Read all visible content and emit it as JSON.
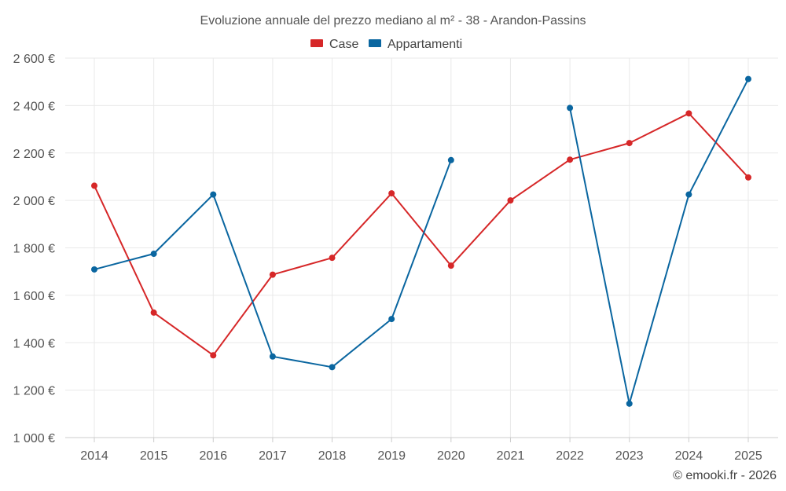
{
  "chart_data": {
    "type": "line",
    "title": "Evoluzione annuale del prezzo mediano al m² - 38 - Arandon-Passins",
    "categories": [
      "2014",
      "2015",
      "2016",
      "2017",
      "2018",
      "2019",
      "2020",
      "2021",
      "2022",
      "2023",
      "2024",
      "2025"
    ],
    "ylim": [
      1000,
      2600
    ],
    "yticks": [
      1000,
      1200,
      1400,
      1600,
      1800,
      2000,
      2200,
      2400,
      2600
    ],
    "ytick_labels": [
      "1 000 €",
      "1 200 €",
      "1 400 €",
      "1 600 €",
      "1 800 €",
      "2 000 €",
      "2 200 €",
      "2 400 €",
      "2 600 €"
    ],
    "legend_position": "top-center",
    "grid": true,
    "series": [
      {
        "name": "Case",
        "color": "#d62728",
        "values": [
          2062,
          1527,
          1347,
          1687,
          1758,
          2030,
          1725,
          2000,
          2172,
          2242,
          2367,
          2097
        ]
      },
      {
        "name": "Appartamenti",
        "color": "#0a66a0",
        "values": [
          1709,
          1775,
          2025,
          1342,
          1297,
          1500,
          2170,
          null,
          2390,
          1143,
          2025,
          2512
        ]
      }
    ],
    "credit": "© emooki.fr - 2026"
  }
}
